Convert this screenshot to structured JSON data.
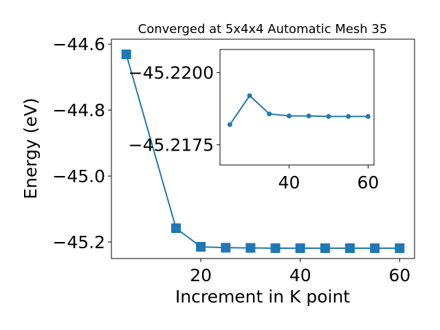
{
  "chart_data": [
    {
      "type": "line",
      "title": "Converged at 5x4x4 Automatic Mesh 35",
      "xlabel": "Increment in K point",
      "ylabel": "Energy (eV)",
      "xlim": [
        2,
        63
      ],
      "ylim": [
        -45.25,
        -44.585
      ],
      "xticks": [
        20,
        40,
        60
      ],
      "yticks": [
        -44.6,
        -44.8,
        -45.0,
        -45.2
      ],
      "xtick_labels": [
        "20",
        "40",
        "60"
      ],
      "ytick_labels": [
        "−44.6",
        "−44.8",
        "−45.0",
        "−45.2"
      ],
      "grid": false,
      "marker": "square",
      "color": "#1f77b4",
      "series": [
        {
          "x": [
            5,
            15,
            20,
            25,
            30,
            35,
            40,
            45,
            50,
            55,
            60
          ],
          "y": [
            -44.631,
            -45.158,
            -45.2145,
            -45.2172,
            -45.218,
            -45.2187,
            -45.2188,
            -45.2188,
            -45.2188,
            -45.2188,
            -45.2188
          ]
        }
      ]
    },
    {
      "type": "line",
      "role": "inset",
      "xlim": [
        22.5,
        61.5
      ],
      "ylim": [
        -45.2168,
        -45.2208
      ],
      "xticks": [
        40,
        60
      ],
      "yticks": [
        -45.22,
        -45.2175
      ],
      "xtick_labels": [
        "40",
        "60"
      ],
      "ytick_labels": [
        "−45.2200",
        "−45.2175"
      ],
      "grid": false,
      "marker": "circle",
      "color": "#1f77b4",
      "series": [
        {
          "x": [
            25,
            30,
            35,
            40,
            45,
            50,
            55,
            60
          ],
          "y": [
            -45.2182,
            -45.2192,
            -45.21857,
            -45.2185,
            -45.2185,
            -45.21848,
            -45.21848,
            -45.21848
          ]
        }
      ]
    }
  ]
}
